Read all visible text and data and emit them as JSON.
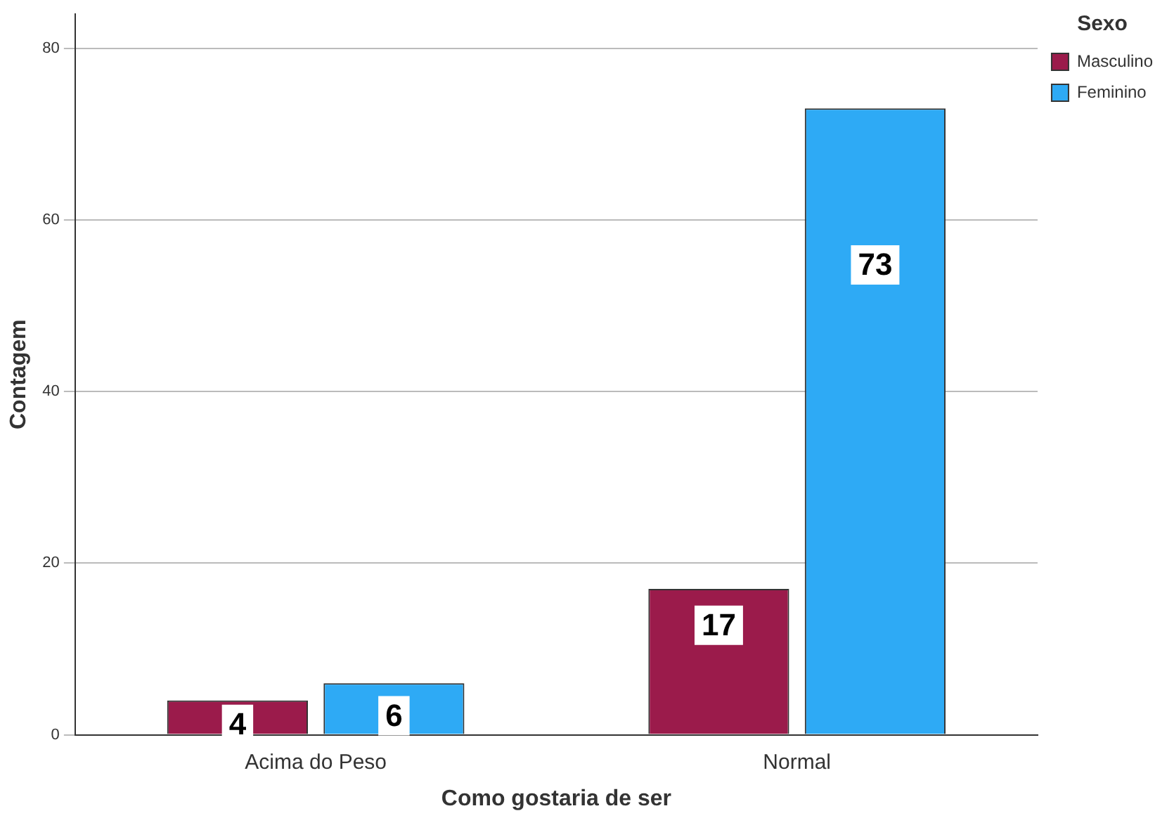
{
  "chart_data": {
    "type": "bar",
    "xlabel": "Como gostaria de ser",
    "ylabel": "Contagem",
    "legend_title": "Sexo",
    "categories": [
      "Acima do Peso",
      "Normal"
    ],
    "series": [
      {
        "name": "Masculino",
        "color": "#9b1b4b",
        "values": [
          4,
          17
        ]
      },
      {
        "name": "Feminino",
        "color": "#2eaaf5",
        "values": [
          6,
          73
        ]
      }
    ],
    "ylim": [
      0,
      84
    ],
    "yticks": [
      0,
      20,
      40,
      60,
      80
    ],
    "grid": "y",
    "legend": "top right",
    "data_labels": true
  }
}
